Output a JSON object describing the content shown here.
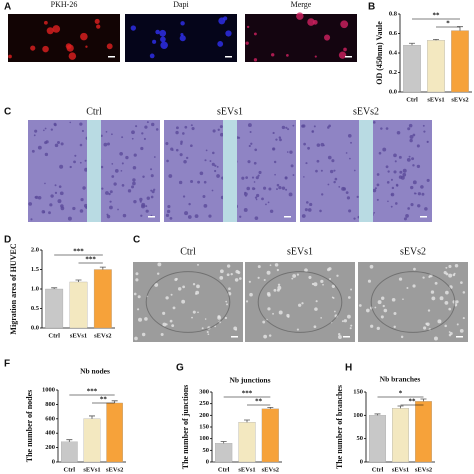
{
  "panel_letters": [
    "A",
    "B",
    "C",
    "D",
    "C",
    "F",
    "G",
    "H"
  ],
  "image_rows": [
    {
      "titles": [
        "PKH-26",
        "Dapi",
        "Merge"
      ]
    },
    {
      "titles": [
        "Ctrl",
        "sEVs1",
        "sEVs2"
      ]
    },
    {
      "titles": [
        "Ctrl",
        "sEVs1",
        "sEVs2"
      ]
    }
  ],
  "chart_data": [
    {
      "type": "bar",
      "ylabel": "OD (450nm) Vaule",
      "categories": [
        "Ctrl",
        "sEVs1",
        "sEVs2"
      ],
      "values": [
        0.48,
        0.53,
        0.63
      ],
      "errors": [
        0.02,
        0.01,
        0.04
      ],
      "colors": [
        "#c8c8c8",
        "#f3e8c0",
        "#f6a23a"
      ],
      "ylim": [
        0,
        0.8
      ],
      "yticks": [
        {
          "value": 0,
          "label": "0.0"
        },
        0.2,
        0.4,
        0.6,
        0.8
      ],
      "annotations": [
        "**",
        "*"
      ]
    },
    {
      "type": "bar",
      "ylabel": "Migration area of HUVEC",
      "categories": [
        "Ctrl",
        "sEVs1",
        "sEVs2"
      ],
      "values": [
        1.0,
        1.18,
        1.5
      ],
      "errors": [
        0.03,
        0.05,
        0.06
      ],
      "colors": [
        "#c8c8c8",
        "#f3e8c0",
        "#f6a23a"
      ],
      "ylim": [
        0,
        2
      ],
      "yticks": [
        {
          "value": 0,
          "label": "0.0"
        },
        0.5,
        {
          "value": 1,
          "label": "1.0"
        },
        1.5,
        {
          "value": 2,
          "label": "2.0"
        }
      ],
      "annotations": [
        "***",
        "***"
      ]
    },
    {
      "type": "bar",
      "title": "Nb nodes",
      "ylabel": "The number of nodes",
      "categories": [
        "Ctrl",
        "sEVs1",
        "sEVs2"
      ],
      "values": [
        280,
        600,
        820
      ],
      "errors": [
        30,
        40,
        30
      ],
      "colors": [
        "#c8c8c8",
        "#f3e8c0",
        "#f6a23a"
      ],
      "ylim": [
        0,
        1000
      ],
      "yticks": [
        0,
        200,
        400,
        600,
        800,
        1000
      ],
      "annotations": [
        "***",
        "**"
      ]
    },
    {
      "type": "bar",
      "title": "Nb junctions",
      "ylabel": "The number of junctions",
      "categories": [
        "Ctrl",
        "sEVs1",
        "sEVs2"
      ],
      "values": [
        80,
        170,
        228
      ],
      "errors": [
        8,
        10,
        6
      ],
      "colors": [
        "#c8c8c8",
        "#f3e8c0",
        "#f6a23a"
      ],
      "ylim": [
        0,
        300
      ],
      "yticks": [
        0,
        50,
        100,
        150,
        200,
        250,
        300
      ],
      "annotations": [
        "***",
        "**"
      ]
    },
    {
      "type": "bar",
      "title": "Nb branches",
      "ylabel": "The number of branches",
      "categories": [
        "Ctrl",
        "sEVs1",
        "sEVs2"
      ],
      "values": [
        100,
        115,
        130
      ],
      "errors": [
        3,
        5,
        5
      ],
      "colors": [
        "#c8c8c8",
        "#f3e8c0",
        "#f6a23a"
      ],
      "ylim": [
        0,
        150
      ],
      "yticks": [
        0,
        50,
        100,
        150
      ],
      "annotations": [
        "*",
        "**"
      ]
    }
  ]
}
